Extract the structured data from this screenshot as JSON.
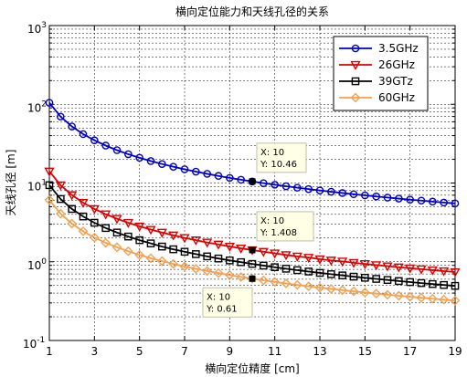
{
  "chart_data": {
    "type": "line",
    "title": "横向定位能力和天线孔径的关系",
    "xlabel": "横向定位精度 [cm]",
    "ylabel": "天线孔径 [m]",
    "xlim": [
      1,
      19
    ],
    "ylim": [
      0.1,
      1000
    ],
    "yscale": "log",
    "grid": true,
    "legend_position": "top-right",
    "x_ticks": [
      1,
      3,
      5,
      7,
      9,
      11,
      13,
      15,
      17,
      19
    ],
    "x_tick_labels": [
      "1",
      "3",
      "5",
      "7",
      "9",
      "11",
      "13",
      "15",
      "17",
      "19"
    ],
    "y_ticks": [
      0.1,
      1,
      10,
      100,
      1000
    ],
    "y_tick_labels": [
      {
        "base": "10",
        "exp": "-1"
      },
      {
        "base": "10",
        "exp": "0"
      },
      {
        "base": "10",
        "exp": "1"
      },
      {
        "base": "10",
        "exp": "2"
      },
      {
        "base": "10",
        "exp": "3"
      }
    ],
    "x": [
      1,
      1.5,
      2,
      2.5,
      3,
      3.5,
      4,
      4.5,
      5,
      5.5,
      6,
      6.5,
      7,
      7.5,
      8,
      8.5,
      9,
      9.5,
      10,
      10.5,
      11,
      11.5,
      12,
      12.5,
      13,
      13.5,
      14,
      14.5,
      15,
      15.5,
      16,
      16.5,
      17,
      17.5,
      18,
      18.5,
      19
    ],
    "series": [
      {
        "name": "3.5GHz",
        "color": "#0000cc",
        "marker": "circle",
        "values": [
          104.6,
          69.73,
          52.3,
          41.84,
          34.87,
          29.89,
          26.15,
          23.24,
          20.92,
          19.02,
          17.43,
          16.09,
          14.94,
          13.95,
          13.08,
          12.31,
          11.62,
          11.01,
          10.46,
          9.96,
          9.51,
          9.1,
          8.72,
          8.37,
          8.05,
          7.75,
          7.47,
          7.21,
          6.97,
          6.75,
          6.54,
          6.34,
          6.15,
          5.98,
          5.81,
          5.65,
          5.51
        ]
      },
      {
        "name": "26GHz",
        "color": "#dd0000",
        "marker": "triangle-down",
        "values": [
          14.08,
          9.39,
          7.04,
          5.63,
          4.69,
          4.02,
          3.52,
          3.13,
          2.82,
          2.56,
          2.35,
          2.17,
          2.01,
          1.88,
          1.76,
          1.66,
          1.56,
          1.48,
          1.408,
          1.34,
          1.28,
          1.22,
          1.17,
          1.13,
          1.08,
          1.04,
          1.01,
          0.971,
          0.939,
          0.908,
          0.88,
          0.853,
          0.828,
          0.805,
          0.782,
          0.761,
          0.741
        ]
      },
      {
        "name": "39GTz",
        "color": "#000000",
        "marker": "square",
        "values": [
          9.39,
          6.26,
          4.69,
          3.76,
          3.13,
          2.68,
          2.35,
          2.09,
          1.88,
          1.71,
          1.56,
          1.44,
          1.34,
          1.25,
          1.17,
          1.1,
          1.04,
          0.988,
          0.939,
          0.894,
          0.853,
          0.816,
          0.782,
          0.751,
          0.722,
          0.695,
          0.671,
          0.647,
          0.626,
          0.606,
          0.587,
          0.569,
          0.552,
          0.536,
          0.521,
          0.507,
          0.494
        ]
      },
      {
        "name": "60GHz",
        "color": "#f5a050",
        "marker": "diamond",
        "values": [
          6.1,
          4.07,
          3.05,
          2.44,
          2.03,
          1.74,
          1.53,
          1.36,
          1.22,
          1.11,
          1.02,
          0.938,
          0.871,
          0.813,
          0.763,
          0.718,
          0.678,
          0.642,
          0.61,
          0.581,
          0.555,
          0.53,
          0.508,
          0.488,
          0.469,
          0.452,
          0.436,
          0.421,
          0.407,
          0.394,
          0.381,
          0.37,
          0.359,
          0.349,
          0.339,
          0.33,
          0.321
        ]
      }
    ],
    "datatips": [
      {
        "series": "3.5GHz",
        "x": 10,
        "y": 10.46,
        "x_text": "X: 10",
        "y_text": "Y: 10.46"
      },
      {
        "series": "26GHz",
        "x": 10,
        "y": 1.408,
        "x_text": "X: 10",
        "y_text": "Y: 1.408"
      },
      {
        "series": "60GHz",
        "x": 10,
        "y": 0.61,
        "x_text": "X: 10",
        "y_text": "Y: 0.61"
      }
    ]
  }
}
